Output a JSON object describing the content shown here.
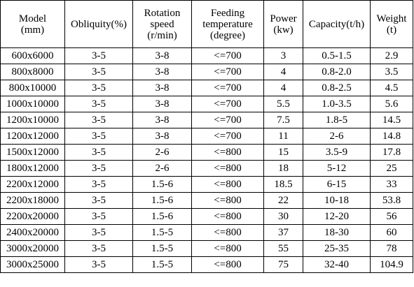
{
  "table": {
    "headers": [
      [
        "Model",
        "(mm)"
      ],
      [
        "Obliquity(%)"
      ],
      [
        "Rotation",
        "speed",
        "(r/min)"
      ],
      [
        "Feeding",
        "temperature",
        "(degree)"
      ],
      [
        "Power",
        "(kw)"
      ],
      [
        "Capacity(t/h)"
      ],
      [
        "Weight",
        "(t)"
      ]
    ],
    "rows": [
      [
        "600x6000",
        "3-5",
        "3-8",
        "<=700",
        "3",
        "0.5-1.5",
        "2.9"
      ],
      [
        "800x8000",
        "3-5",
        "3-8",
        "<=700",
        "4",
        "0.8-2.0",
        "3.5"
      ],
      [
        "800x10000",
        "3-5",
        "3-8",
        "<=700",
        "4",
        "0.8-2.5",
        "4.5"
      ],
      [
        "1000x10000",
        "3-5",
        "3-8",
        "<=700",
        "5.5",
        "1.0-3.5",
        "5.6"
      ],
      [
        "1200x10000",
        "3-5",
        "3-8",
        "<=700",
        "7.5",
        "1.8-5",
        "14.5"
      ],
      [
        "1200x12000",
        "3-5",
        "3-8",
        "<=700",
        "11",
        "2-6",
        "14.8"
      ],
      [
        "1500x12000",
        "3-5",
        "2-6",
        "<=800",
        "15",
        "3.5-9",
        "17.8"
      ],
      [
        "1800x12000",
        "3-5",
        "2-6",
        "<=800",
        "18",
        "5-12",
        "25"
      ],
      [
        "2200x12000",
        "3-5",
        "1.5-6",
        "<=800",
        "18.5",
        "6-15",
        "33"
      ],
      [
        "2200x18000",
        "3-5",
        "1.5-6",
        "<=800",
        "22",
        "10-18",
        "53.8"
      ],
      [
        "2200x20000",
        "3-5",
        "1.5-6",
        "<=800",
        "30",
        "12-20",
        "56"
      ],
      [
        "2400x20000",
        "3-5",
        "1.5-5",
        "<=800",
        "37",
        "18-30",
        "60"
      ],
      [
        "3000x20000",
        "3-5",
        "1.5-5",
        "<=800",
        "55",
        "25-35",
        "78"
      ],
      [
        "3000x25000",
        "3-5",
        "1.5-5",
        "<=800",
        "75",
        "32-40",
        "104.9"
      ]
    ]
  }
}
